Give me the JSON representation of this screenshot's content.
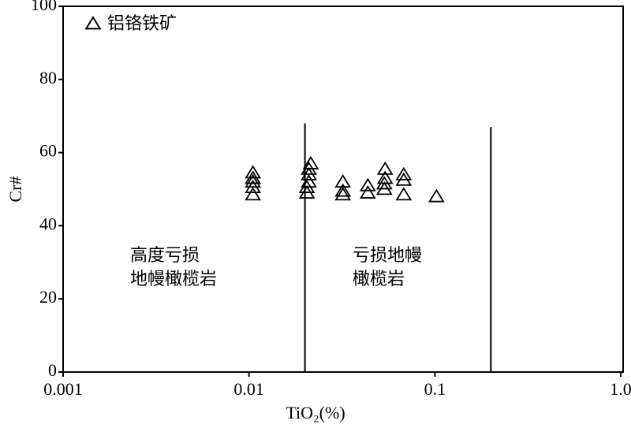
{
  "chart_data": {
    "type": "scatter",
    "xlabel": "TiO₂(%)",
    "ylabel": "Cr#",
    "xscale": "log",
    "xlim": [
      0.001,
      1
    ],
    "ylim": [
      0,
      100
    ],
    "xticks": [
      0.001,
      0.01,
      0.1,
      {
        "value": 1,
        "label": "1.0"
      }
    ],
    "yticks": [
      0,
      20,
      40,
      60,
      80,
      100
    ],
    "legend": "upper left",
    "series": [
      {
        "name": "铝铬铁矿",
        "color": "#000000",
        "x": [
          0.0105,
          0.0105,
          0.0105,
          0.0105,
          0.0105,
          0.0205,
          0.0205,
          0.021,
          0.021,
          0.021,
          0.0215,
          0.032,
          0.032,
          0.032,
          0.0436,
          0.0436,
          0.0535,
          0.0535,
          0.054,
          0.054,
          0.068,
          0.068,
          0.068,
          0.102
        ],
        "values": [
          48.5,
          50.5,
          52,
          53,
          54.5,
          49,
          50.5,
          52,
          54,
          55.5,
          57,
          48.5,
          49.5,
          52,
          49,
          51,
          50,
          51.5,
          53,
          55.5,
          48.5,
          52.5,
          54,
          48
        ]
      }
    ],
    "lines": [
      {
        "color": "#000000",
        "x": [
          0.02,
          0.02
        ],
        "values": [
          0,
          68
        ]
      },
      {
        "color": "#000000",
        "x": [
          0.2,
          0.2
        ],
        "values": [
          0,
          67
        ]
      }
    ],
    "annotations": [
      {
        "lines": [
          "高度亏损",
          "地幔橄榄岩"
        ]
      },
      {
        "lines": [
          "亏损地幔",
          "橄榄岩"
        ]
      }
    ]
  }
}
